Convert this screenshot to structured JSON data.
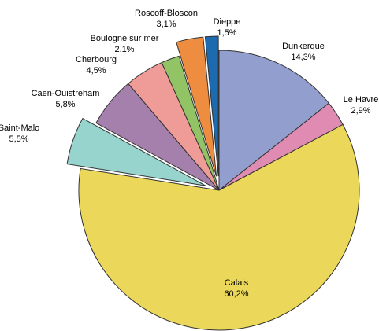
{
  "chart_data": {
    "type": "pie",
    "title": "",
    "start_angle_deg": 0,
    "direction": "clockwise",
    "slices": [
      {
        "name": "Dunkerque",
        "value": 14.3,
        "value_label": "14,3%",
        "color": "#929FCE",
        "exploded": false
      },
      {
        "name": "Le Havre",
        "value": 2.9,
        "value_label": "2,9%",
        "color": "#E08BB2",
        "exploded": false
      },
      {
        "name": "Calais",
        "value": 60.2,
        "value_label": "60,2%",
        "color": "#EBD85A",
        "exploded": false
      },
      {
        "name": "Saint-Malo",
        "value": 5.5,
        "value_label": "5,5%",
        "color": "#96D4CD",
        "exploded": true
      },
      {
        "name": "Caen-Ouistreham",
        "value": 5.8,
        "value_label": "5,8%",
        "color": "#A680AC",
        "exploded": false
      },
      {
        "name": "Cherbourg",
        "value": 4.5,
        "value_label": "4,5%",
        "color": "#EF9C98",
        "exploded": false
      },
      {
        "name": "Boulogne sur mer",
        "value": 2.1,
        "value_label": "2,1%",
        "color": "#92C364",
        "exploded": false
      },
      {
        "name": "Roscoff-Bloscon",
        "value": 3.1,
        "value_label": "3,1%",
        "color": "#EE8C3F",
        "exploded": true
      },
      {
        "name": "Dieppe",
        "value": 1.5,
        "value_label": "1,5%",
        "color": "#1E6AAF",
        "exploded": true
      }
    ]
  }
}
